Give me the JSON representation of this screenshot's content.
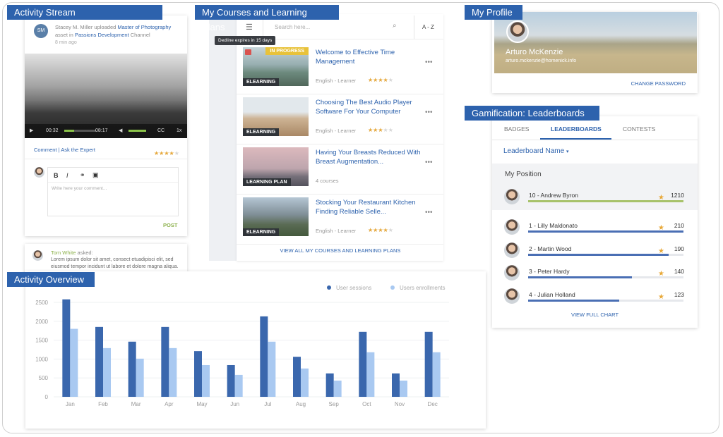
{
  "activity_stream": {
    "title": "Activity Stream",
    "post": {
      "avatar": "SM",
      "author": "Stacey M. Miller uploaded",
      "asset": "Master of Photography",
      "asset_suffix": "asset in",
      "channel": "Passions Development",
      "channel_suffix": "Channel",
      "time": "8 min ago",
      "video": {
        "current": "00:32",
        "duration": "08:17",
        "captions": "CC",
        "speed": "1x"
      },
      "comment_link": "Comment",
      "ask_link": "Ask the Expert",
      "rating": 4,
      "editor": {
        "bold": "B",
        "italic": "I",
        "placeholder": "Write here your comment...",
        "submit": "POST"
      }
    },
    "comment": {
      "author": "Tom White",
      "verb": "asked:",
      "text": "Lorem ipsum dolor sit amet, consect etuadipisci elit, sed eiusmod tempor incidunt ut labore et dolore magna aliqua."
    }
  },
  "courses": {
    "title": "My Courses and Learning Plans",
    "search_placeholder": "Search here...",
    "sort": "A - Z",
    "tooltip": "Dedline expires in 15 days",
    "items": [
      {
        "title": "Welcome to Effective Time Management",
        "status": "IN PROGRESS",
        "type": "ELEARNING",
        "meta": "English - Learner",
        "rating": 4
      },
      {
        "title": "Choosing The Best Audio Player Software For Your Computer",
        "type": "ELEARNING",
        "meta": "English - Learner",
        "rating": 3
      },
      {
        "title": "Having Your Breasts Reduced With Breast Augmentation...",
        "type": "LEARNING PLAN",
        "meta": "4 courses"
      },
      {
        "title": "Stocking Your Restaurant Kitchen Finding Reliable Selle...",
        "type": "ELEARNING",
        "meta": "English - Learner",
        "rating": 4
      }
    ],
    "view_all": "VIEW ALL MY COURSES AND LEARNING PLANS"
  },
  "profile": {
    "title": "My Profile",
    "name": "Arturo McKenzie",
    "email": "arturo.mckenzie@homenick.info",
    "change_password": "CHANGE PASSWORD"
  },
  "gamification": {
    "title": "Gamification: Leaderboards",
    "tabs": [
      "BADGES",
      "LEADERBOARDS",
      "CONTESTS"
    ],
    "leaderboard_name": "Leaderboard Name",
    "my_position": {
      "heading": "My Position",
      "name": "10 - Andrew Byron",
      "score": 1210
    },
    "entries": [
      {
        "name": "1 - Lilly Maldonato",
        "score": 210
      },
      {
        "name": "2 - Martin Wood",
        "score": 190
      },
      {
        "name": "3 - Peter Hardy",
        "score": 140
      },
      {
        "name": "4 - Julian Holland",
        "score": 123
      }
    ],
    "view_full": "VIEW FULL CHART"
  },
  "chart_data": {
    "type": "bar",
    "title": "Activity Overview",
    "categories": [
      "Jan",
      "Feb",
      "Mar",
      "Apr",
      "May",
      "Jun",
      "Jul",
      "Aug",
      "Sep",
      "Oct",
      "Nov",
      "Dec"
    ],
    "series": [
      {
        "name": "User sessions",
        "color": "#3a67ad",
        "values": [
          2580,
          1850,
          1460,
          1850,
          1210,
          840,
          2130,
          1060,
          620,
          1720,
          620,
          1720
        ]
      },
      {
        "name": "Users enrollments",
        "color": "#a9c9f1",
        "values": [
          1800,
          1290,
          1010,
          1290,
          840,
          580,
          1460,
          750,
          430,
          1180,
          430,
          1180
        ]
      }
    ],
    "ylim": [
      0,
      2500
    ],
    "yticks": [
      0,
      500,
      1000,
      1500,
      2000,
      2500
    ],
    "grid": true,
    "legend": "top-right"
  }
}
